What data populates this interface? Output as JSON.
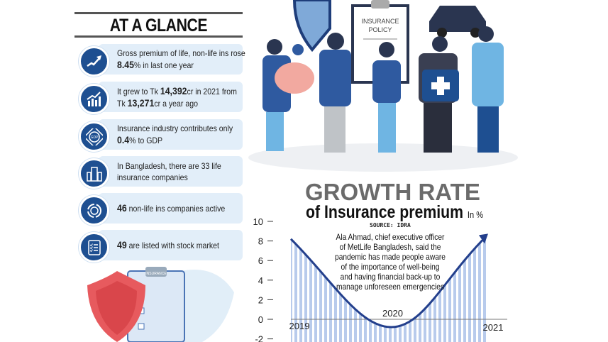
{
  "glance": {
    "title": "AT A GLANCE",
    "items": [
      {
        "icon": "growth-arrow-icon",
        "pre": "Gross premium of life, non-life ins rose",
        "bold": "8.45",
        "post": "% in last one year"
      },
      {
        "icon": "bar-chart-growth-icon",
        "line1_pre": "It grew to Tk ",
        "line1_bold": "14,392",
        "line1_post": "cr in 2021 from",
        "line2_pre": "Tk ",
        "line2_bold": "13,271",
        "line2_post": "cr a year ago"
      },
      {
        "icon": "gdp-globe-icon",
        "pre": "Insurance industry contributes only",
        "bold": "0.4",
        "post": "% to GDP"
      },
      {
        "icon": "building-icon",
        "line1": "In Bangladesh, there are 33 life",
        "line2": "insurance companies"
      },
      {
        "icon": "cycle-icon",
        "bold": "46",
        "post": " non-life ins companies active"
      },
      {
        "icon": "checklist-icon",
        "bold": "49",
        "post": " are listed with stock market"
      }
    ]
  },
  "illustration": {
    "policy_line1": "INSURANCE",
    "policy_line2": "POLICY",
    "small_clipboard": "INSURANCE"
  },
  "chart_data": {
    "type": "line",
    "title": "GROWTH RATE",
    "subtitle": "of Insurance premium",
    "unit": "In %",
    "source": "SOURCE: IDRA",
    "x": [
      "2019",
      "2020",
      "2021"
    ],
    "values": [
      8.2,
      -0.8,
      8.45
    ],
    "yticks": [
      "10",
      "8",
      "6",
      "4",
      "2",
      "0",
      "-2"
    ],
    "ylim": [
      -2,
      10
    ],
    "annotation": [
      "Ala Ahmad, chief executive officer",
      "of MetLife Bangladesh, said the",
      "pandemic has made people aware",
      "of the importance of well-being",
      "and having financial back-up to",
      "manage unforeseen emergencies"
    ],
    "colors": {
      "line": "#233f8c",
      "fill": "#b8cbec"
    }
  }
}
